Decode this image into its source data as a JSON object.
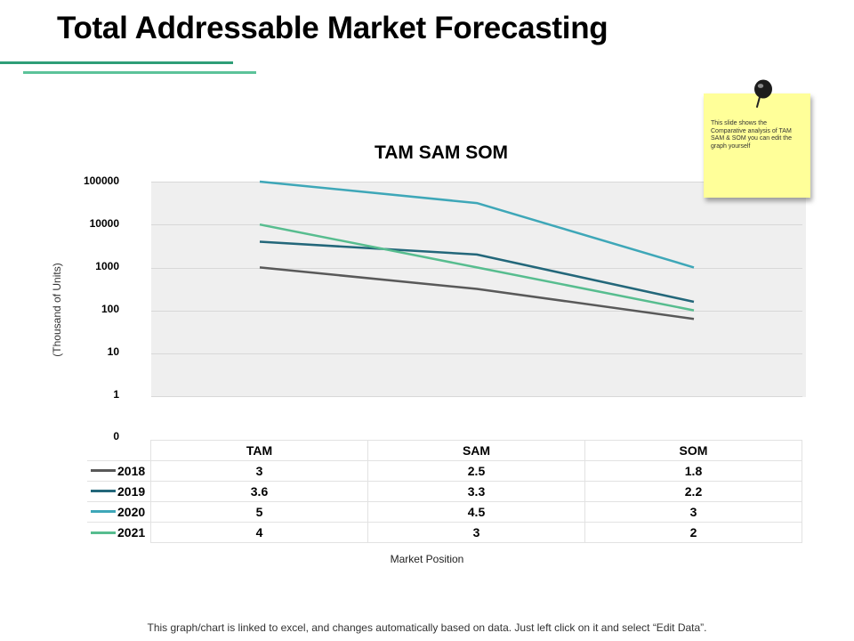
{
  "page": {
    "title": "Total Addressable Market Forecasting",
    "note_text": "This slide shows the Comparative analysis of TAM SAM & SOM you can edit the graph yourself",
    "footer_text": "This graph/chart is linked to excel, and changes automatically based on data. Just left click on it and select “Edit Data”."
  },
  "colors": {
    "accent_dark": "#2e9e77",
    "accent_light": "#5cc39a",
    "note_bg": "#ffff99"
  },
  "chart_data": {
    "type": "line",
    "title": "TAM SAM SOM",
    "xlabel": "Market Position",
    "ylabel": "(Thousand of Units)",
    "yscale": "log",
    "yticks": [
      "100000",
      "10000",
      "1000",
      "100",
      "10",
      "1",
      "0"
    ],
    "categories": [
      "TAM",
      "SAM",
      "SOM"
    ],
    "series": [
      {
        "name": "2018",
        "values": [
          3,
          2.5,
          1.8
        ],
        "color": "#595959"
      },
      {
        "name": "2019",
        "values": [
          3.6,
          3.3,
          2.2
        ],
        "color": "#23677a"
      },
      {
        "name": "2020",
        "values": [
          5,
          4.5,
          3
        ],
        "color": "#3ea7b8"
      },
      {
        "name": "2021",
        "values": [
          4,
          3,
          2
        ],
        "color": "#57bd8f"
      }
    ],
    "legend": "table-below"
  }
}
